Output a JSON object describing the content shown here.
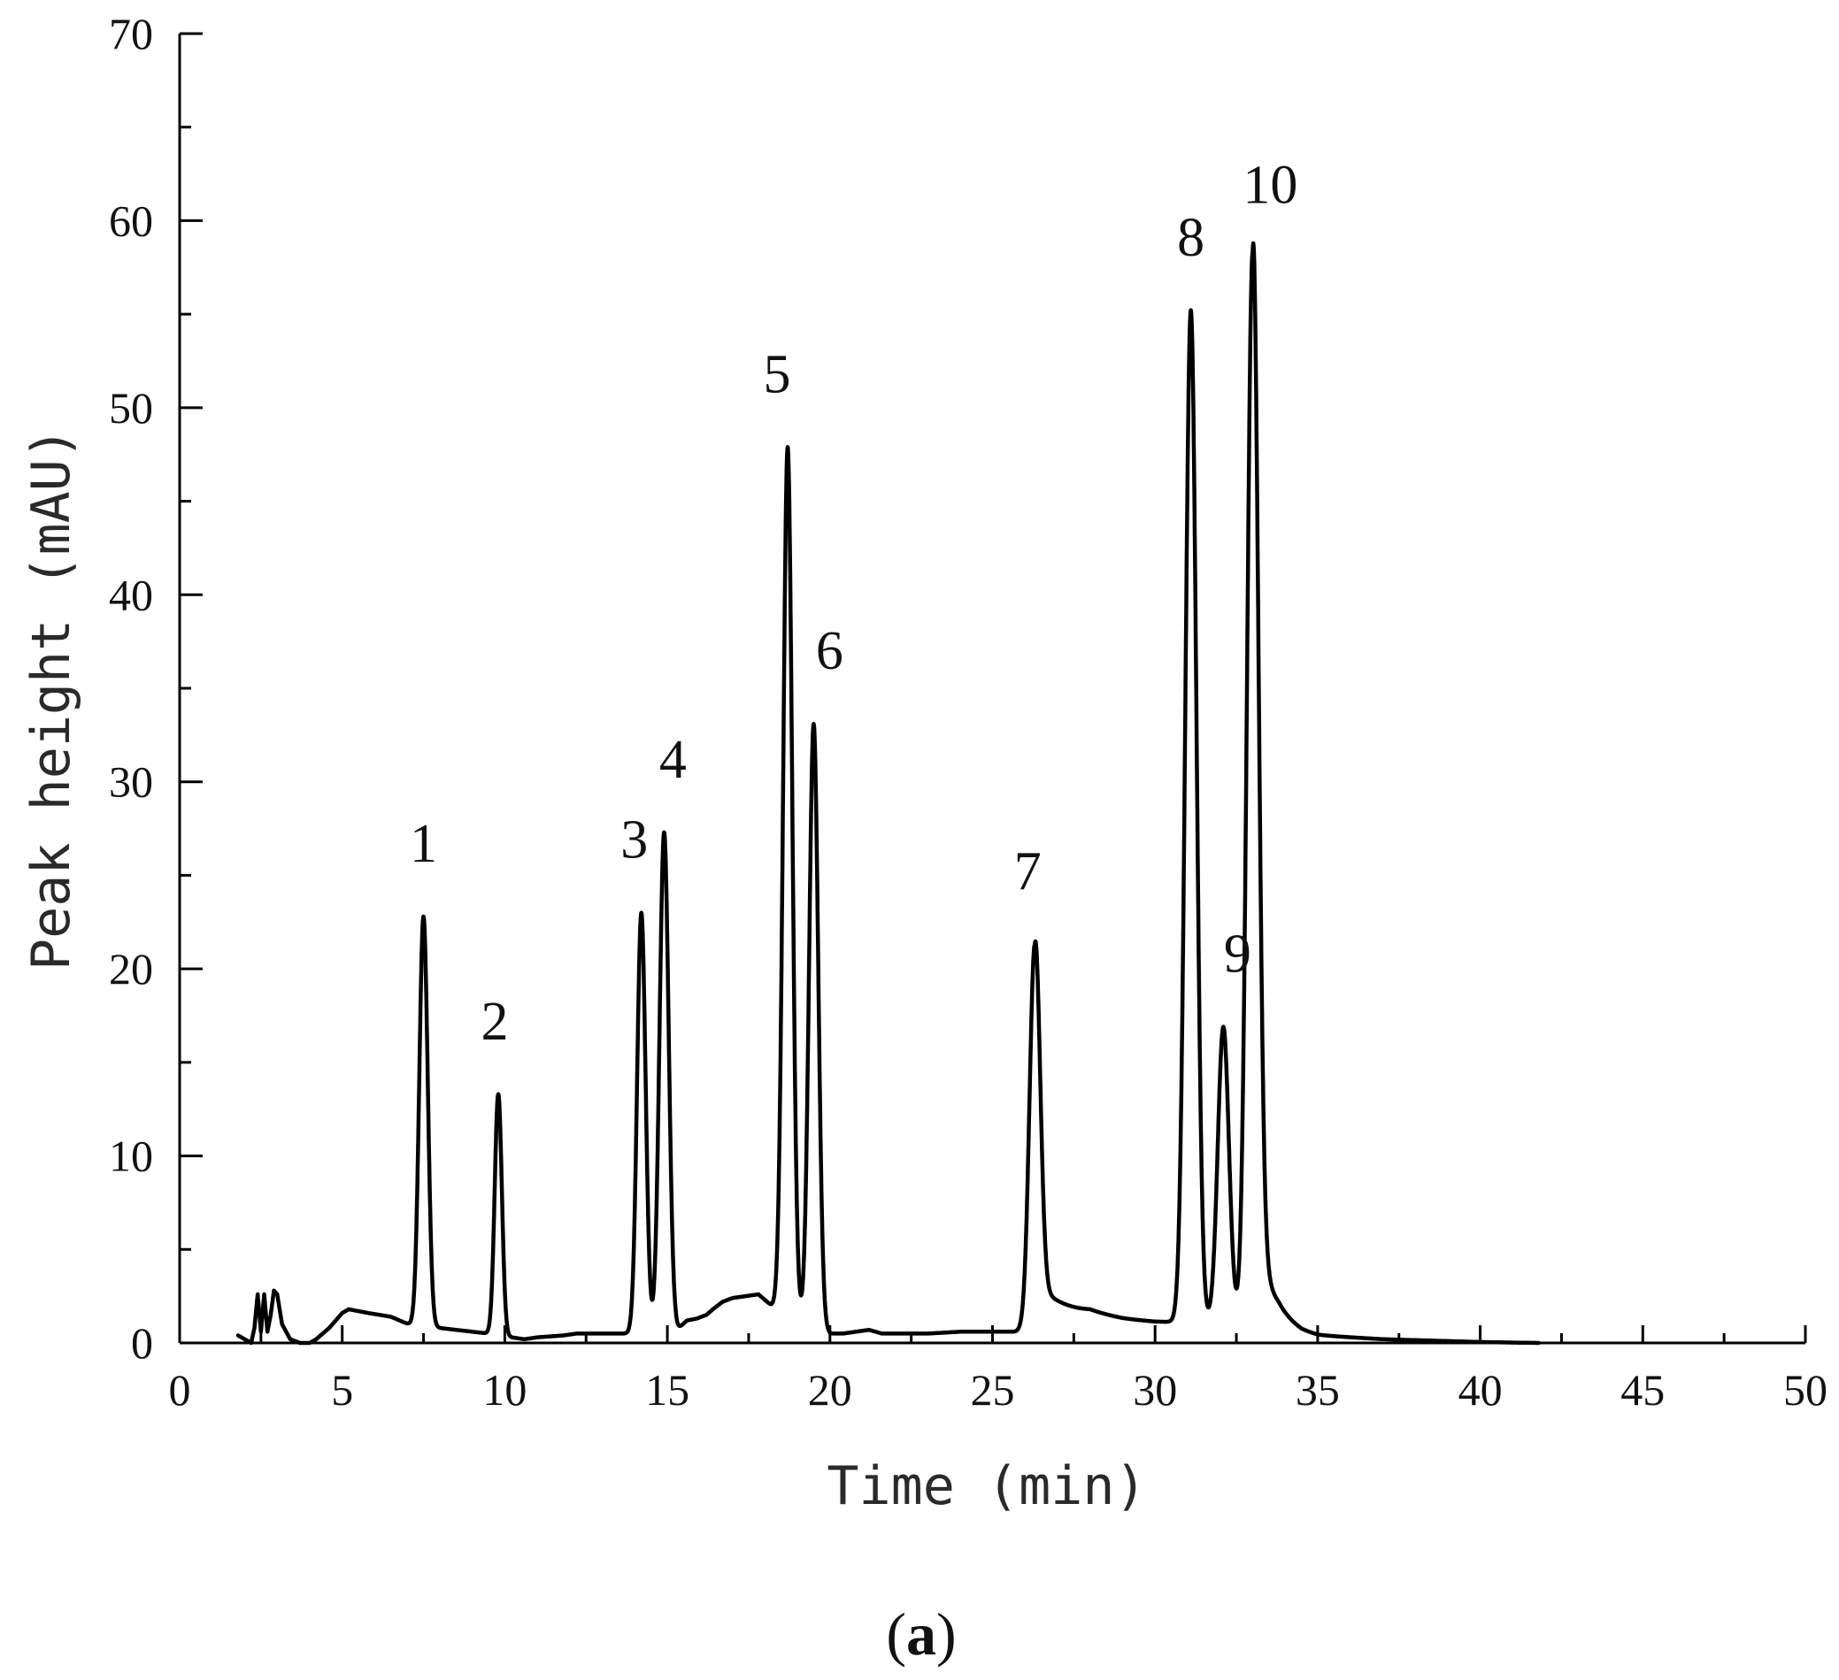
{
  "chart_data": {
    "type": "line",
    "title": "",
    "xlabel": "Time (min)",
    "ylabel": "Peak height (mAU)",
    "xlim": [
      0,
      50
    ],
    "ylim": [
      0,
      70
    ],
    "x_ticks": [
      "0",
      "5",
      "10",
      "15",
      "20",
      "25",
      "30",
      "35",
      "40",
      "45",
      "50"
    ],
    "y_ticks": [
      "0",
      "10",
      "20",
      "30",
      "40",
      "50",
      "60",
      "70"
    ],
    "grid": false,
    "legend": "none",
    "line_color": "#000000",
    "panel_label": {
      "open": "(",
      "letter": "a",
      "close": ")"
    },
    "baseline": [
      [
        1.8,
        0.4
      ],
      [
        2.0,
        0.2
      ],
      [
        2.2,
        0.0
      ],
      [
        2.3,
        0.8
      ],
      [
        2.4,
        2.6
      ],
      [
        2.5,
        0.6
      ],
      [
        2.6,
        2.6
      ],
      [
        2.7,
        0.6
      ],
      [
        2.8,
        1.5
      ],
      [
        2.9,
        2.8
      ],
      [
        3.0,
        2.6
      ],
      [
        3.15,
        1.0
      ],
      [
        3.4,
        0.2
      ],
      [
        3.7,
        0.0
      ],
      [
        4.0,
        0.0
      ],
      [
        4.2,
        0.2
      ],
      [
        4.4,
        0.5
      ],
      [
        4.6,
        0.8
      ],
      [
        4.8,
        1.2
      ],
      [
        5.0,
        1.6
      ],
      [
        5.2,
        1.8
      ],
      [
        5.8,
        1.6
      ],
      [
        6.5,
        1.4
      ],
      [
        6.9,
        1.1
      ],
      [
        7.2,
        0.9
      ],
      [
        8.0,
        0.8
      ],
      [
        9.0,
        0.6
      ],
      [
        9.5,
        0.5
      ],
      [
        10.2,
        0.3
      ],
      [
        10.6,
        0.2
      ],
      [
        11.0,
        0.3
      ],
      [
        11.8,
        0.4
      ],
      [
        12.2,
        0.5
      ],
      [
        13.0,
        0.5
      ],
      [
        13.8,
        0.5
      ],
      [
        15.3,
        0.7
      ],
      [
        15.6,
        1.2
      ],
      [
        15.9,
        1.3
      ],
      [
        16.2,
        1.5
      ],
      [
        16.4,
        1.8
      ],
      [
        16.7,
        2.2
      ],
      [
        17.0,
        2.4
      ],
      [
        17.4,
        2.5
      ],
      [
        17.8,
        2.6
      ],
      [
        18.0,
        2.3
      ],
      [
        18.2,
        2.0
      ],
      [
        20.0,
        0.5
      ],
      [
        20.4,
        0.5
      ],
      [
        20.8,
        0.6
      ],
      [
        21.2,
        0.7
      ],
      [
        21.6,
        0.5
      ],
      [
        22.0,
        0.5
      ],
      [
        23.0,
        0.5
      ],
      [
        24.0,
        0.6
      ],
      [
        25.0,
        0.6
      ],
      [
        25.7,
        0.6
      ],
      [
        28.0,
        1.4
      ],
      [
        29.0,
        1.2
      ],
      [
        30.0,
        1.1
      ],
      [
        30.5,
        1.1
      ],
      [
        33.8,
        1.2
      ],
      [
        34.5,
        0.6
      ],
      [
        35.0,
        0.4
      ],
      [
        36.0,
        0.3
      ],
      [
        37.0,
        0.2
      ],
      [
        38.0,
        0.15
      ],
      [
        39.0,
        0.1
      ],
      [
        40.0,
        0.05
      ],
      [
        41.0,
        0.02
      ],
      [
        41.8,
        0.0
      ]
    ],
    "peaks": [
      {
        "label": "1",
        "x": 7.5,
        "y": 22.8,
        "sigma": 0.13,
        "tail": 0.0
      },
      {
        "label": "2",
        "x": 9.8,
        "y": 13.3,
        "sigma": 0.11,
        "tail": 0.0
      },
      {
        "label": "3",
        "x": 14.2,
        "y": 23.0,
        "sigma": 0.13,
        "tail": 0.0
      },
      {
        "label": "4",
        "x": 14.9,
        "y": 27.3,
        "sigma": 0.14,
        "tail": 0.0
      },
      {
        "label": "5",
        "x": 18.7,
        "y": 47.9,
        "sigma": 0.14,
        "tail": 0.0
      },
      {
        "label": "6",
        "x": 19.5,
        "y": 33.1,
        "sigma": 0.14,
        "tail": 0.0
      },
      {
        "label": "7",
        "x": 26.3,
        "y": 21.3,
        "sigma": 0.16,
        "tail": 0.9
      },
      {
        "label": "8",
        "x": 31.1,
        "y": 55.2,
        "sigma": 0.17,
        "tail": 0.0
      },
      {
        "label": "9",
        "x": 32.1,
        "y": 16.9,
        "sigma": 0.17,
        "tail": 0.0
      },
      {
        "label": "10",
        "x": 33.0,
        "y": 58.3,
        "sigma": 0.17,
        "tail": 0.4
      }
    ]
  }
}
